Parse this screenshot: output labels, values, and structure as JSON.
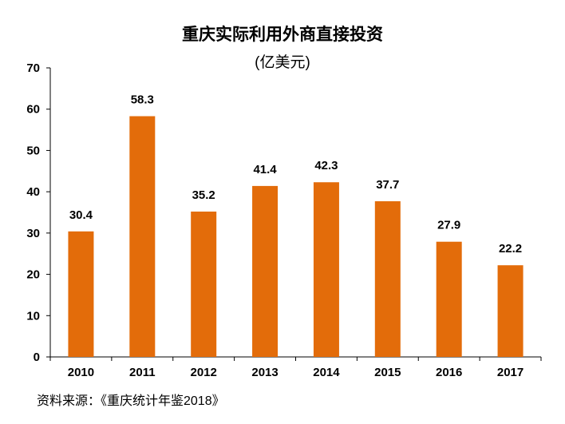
{
  "title": "重庆实际利用外商直接投资",
  "subtitle": "(亿美元)",
  "source": "资料来源：《重庆统计年鉴2018》",
  "chart_data": {
    "type": "bar",
    "categories": [
      "2010",
      "2011",
      "2012",
      "2013",
      "2014",
      "2015",
      "2016",
      "2017"
    ],
    "values": [
      30.4,
      58.3,
      35.2,
      41.4,
      42.3,
      37.7,
      27.9,
      22.2
    ],
    "title": "重庆实际利用外商直接投资",
    "subtitle": "(亿美元)",
    "xlabel": "",
    "ylabel": "",
    "ylim": [
      0,
      70
    ],
    "yticks": [
      0,
      10,
      20,
      30,
      40,
      50,
      60,
      70
    ],
    "grid": false,
    "legend": "none",
    "bar_color": "#e36c0a",
    "data_labels": true
  }
}
